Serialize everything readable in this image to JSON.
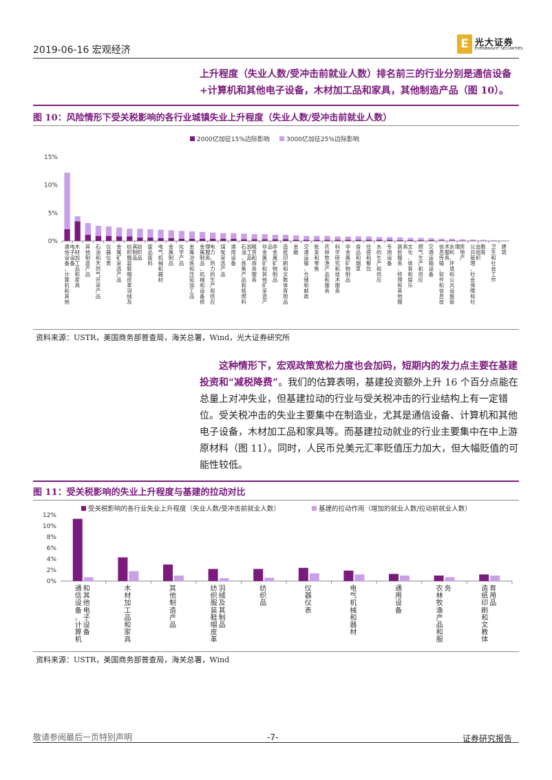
{
  "header": {
    "date_section": "2019-06-16   宏观经济",
    "logo_mark": "E",
    "logo_cn": "光大证券",
    "logo_en": "EVERBRIGHT SECURITIES"
  },
  "intro_paragraph": "上升程度（失业人数/受冲击前就业人数）排名前三的行业分别是通信设备+计算机和其他电子设备，木材加工品和家具，其他制造产品（图 10）。",
  "figure10": {
    "title": "图 10：风险情形下受关税影响的各行业城镇失业上升程度（失业人数/受冲击前就业人数）",
    "source": "资料来源：USTR，美国商务部普查局，海关总署，Wind，光大证券研究所"
  },
  "figure11": {
    "title": "图 11：受关税影响的失业上升程度与基建的拉动对比",
    "source": "资料来源：USTR，美国商务部普查局，海关总署，Wind"
  },
  "body_paragraph": {
    "emphasis": "这种情形下，宏观政策宽松力度也会加码，短期内的发力点主要在基建投资和“减税降费”",
    "rest": "。我们的估算表明，基建投资额外上升 16 个百分点能在总量上对冲失业，但基建拉动的行业与受关税冲击的行业结构上有一定错位。受关税冲击的失业主要集中在制造业，尤其是通信设备、计算机和其他电子设备，木材加工品和家具等。而基建拉动就业的行业主要集中在中上游原材料（图 11）。同时，人民币兑美元汇率贬值压力加大，但大幅贬值的可能性较低。"
  },
  "footer": {
    "left": "敬请参阅最后一页特别声明",
    "page": "-7-",
    "right": "证券研究报告"
  },
  "colors": {
    "dark": "#7a1a7c",
    "light": "#c9a0e8",
    "accent_text": "#7a1a7c"
  },
  "chart_data": [
    {
      "type": "bar",
      "stacked": true,
      "categories": [
        "通信设备、计算机和其他电子设备",
        "木材加工品和家具",
        "其他制造产品",
        "石油和天然气开采产品",
        "仪器仪表",
        "金属矿采选产品",
        "纺织服装鞋帽皮革羽绒及其制品",
        "纺织品",
        "废品废料",
        "电气机械和器材",
        "金属制品",
        "化学产品",
        "金属冶炼和压延加工品",
        "金属制品、机械和设备修理服务",
        "电力、热力的生产和供应",
        "煤炭采选产品",
        "通用设备",
        "石油、炼焦产品和核燃料加工品",
        "租赁和商务服务",
        "非金属矿和其他矿采选产品",
        "非金属矿物制品",
        "造纸印刷和文教体育用品",
        "金融",
        "交通运输、仓储和邮政",
        "批发和零售",
        "农林牧渔产品和服务",
        "科学研究和技术服务",
        "非金属矿物制品",
        "食品和烟草",
        "住宿和餐饮",
        "水的生产和供应",
        "专用设备",
        "居民服务、修理和其他服务",
        "文化、体育和娱乐",
        "燃气生产和供应",
        "交通运输设备",
        "信息传输、软件和信息技术服务",
        "水利、环境和公共设施管理",
        "房地产",
        "公共管理、社会保障和社会组织",
        "教育",
        "卫生和社会工作",
        "建筑"
      ],
      "series": [
        {
          "name": "2000亿加征15%边际影响",
          "values": [
            2.1,
            3.5,
            1.1,
            0.9,
            0.9,
            0.8,
            0.8,
            0.6,
            0.6,
            0.5,
            0.5,
            0.4,
            0.4,
            0.4,
            0.4,
            0.4,
            0.4,
            0.3,
            0.3,
            0.3,
            0.3,
            0.3,
            0.2,
            0.2,
            0.2,
            0.2,
            0.2,
            0.2,
            0.2,
            0.2,
            0.2,
            0.2,
            0.15,
            0.15,
            0.15,
            0.15,
            0.1,
            0.1,
            0.05,
            0.05,
            0.03,
            0.02,
            0.01
          ]
        },
        {
          "name": "3000亿加征25%边际影响",
          "values": [
            10.1,
            0.9,
            2.1,
            1.8,
            1.7,
            1.6,
            1.4,
            1.6,
            1.5,
            1.5,
            1.4,
            1.4,
            1.3,
            1.2,
            1.1,
            1.0,
            1.0,
            1.0,
            0.9,
            0.9,
            0.8,
            0.8,
            0.8,
            0.7,
            0.7,
            0.7,
            0.6,
            0.6,
            0.6,
            0.6,
            0.5,
            0.5,
            0.5,
            0.4,
            0.4,
            0.35,
            0.3,
            0.3,
            0.25,
            0.2,
            0.17,
            0.13,
            0.09
          ]
        }
      ],
      "yticks": [
        "0%",
        "5%",
        "10%",
        "15%"
      ],
      "ylim": [
        0,
        15
      ],
      "legend_position": "top"
    },
    {
      "type": "bar",
      "categories": [
        "通信设备、计算机和其他电子设备",
        "木材加工品和家具",
        "其他制造产品",
        "纺织服装鞋帽皮革羽绒及其制品",
        "纺织品",
        "仪器仪表",
        "电气机械和器材",
        "通用设备",
        "农林牧渔产品和服务",
        "造纸印刷和文教体育用品"
      ],
      "series": [
        {
          "name": "受关税影响的各行业失业上升程度（失业人数/受冲击前就业人数）",
          "values": [
            11.3,
            4.3,
            3.0,
            2.2,
            2.2,
            2.4,
            1.9,
            1.3,
            1.0,
            1.2
          ]
        },
        {
          "name": "基建的拉动作用（增加的就业人数/拉动前就业人数）",
          "values": [
            0.7,
            1.8,
            1.0,
            0.5,
            0.6,
            1.4,
            1.2,
            1.0,
            0.7,
            1.0
          ]
        }
      ],
      "yticks": [
        "0%",
        "2%",
        "4%",
        "6%",
        "8%",
        "10%",
        "12%"
      ],
      "ylim": [
        0,
        12
      ],
      "legend_position": "top"
    }
  ]
}
